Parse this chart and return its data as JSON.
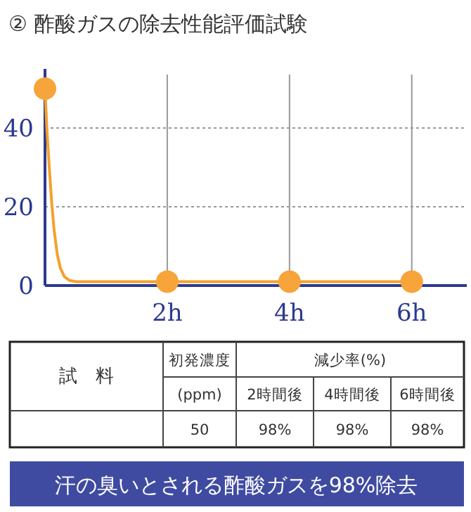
{
  "chart_data": {
    "type": "line",
    "title": "② 酢酸ガスの除去性能評価試験",
    "xlim": [
      0,
      6.9
    ],
    "ylim": [
      0,
      55
    ],
    "xticks": [
      {
        "value": 2,
        "label": "2h"
      },
      {
        "value": 4,
        "label": "4h"
      },
      {
        "value": 6,
        "label": "6h"
      }
    ],
    "yticks": [
      0,
      20,
      40
    ],
    "grid": true,
    "series": [
      {
        "type": "line",
        "color": "#f5a12a",
        "marker": "none",
        "x": [
          0,
          0.03,
          0.07,
          0.11,
          0.15,
          0.2,
          0.25,
          0.32,
          0.4,
          0.5,
          1,
          2,
          4,
          6
        ],
        "values": [
          50,
          40,
          30,
          21,
          14,
          8,
          4.5,
          2.2,
          1.3,
          1,
          1,
          1,
          1,
          1
        ]
      },
      {
        "type": "scatter",
        "color": "#f7a43a",
        "marker": "circle",
        "x": [
          0,
          2,
          4,
          6
        ],
        "values": [
          50,
          1,
          1,
          1
        ]
      }
    ],
    "annotations": [
      "試　料",
      "初発濃度",
      "(ppm)",
      "減少率(%)",
      "2時間後",
      "4時間後",
      "6時間後",
      "50",
      "98%",
      "98%",
      "98%",
      "汗の臭いとされる酢酸ガスを98%除去"
    ]
  }
}
